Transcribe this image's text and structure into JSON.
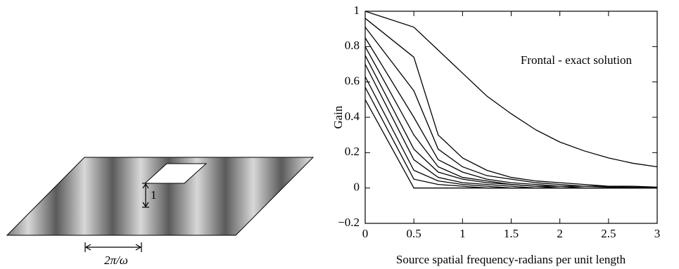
{
  "diagram": {
    "height_label": "1",
    "width_label": "2π/ω"
  },
  "chart_data": {
    "type": "line",
    "ylabel": "Gain",
    "xlabel": "Source spatial frequency-radians per unit length",
    "annotation": "Frontal - exact solution",
    "xlim": [
      0,
      3
    ],
    "ylim": [
      -0.2,
      1
    ],
    "xticks": [
      0,
      0.5,
      1,
      1.5,
      2,
      2.5,
      3
    ],
    "yticks": [
      {
        "value": -0.2,
        "label": "−0.2"
      },
      0,
      0.2,
      0.4,
      0.6,
      0.8,
      1
    ],
    "x": [
      0,
      0.5,
      0.75,
      1,
      1.25,
      1.5,
      1.75,
      2,
      2.25,
      2.5,
      2.75,
      3
    ],
    "series": [
      {
        "color": "#000000",
        "values": [
          1,
          0.91,
          0.78,
          0.65,
          0.52,
          0.42,
          0.33,
          0.26,
          0.21,
          0.17,
          0.14,
          0.12
        ]
      },
      {
        "color": "#000000",
        "values": [
          0.96,
          0.74,
          0.3,
          0.17,
          0.1,
          0.06,
          0.04,
          0.03,
          0.02,
          0.01,
          0.01,
          0.005
        ]
      },
      {
        "color": "#000000",
        "values": [
          0.91,
          0.55,
          0.22,
          0.12,
          0.07,
          0.05,
          0.03,
          0.02,
          0.01,
          0.01,
          0.005,
          0
        ]
      },
      {
        "color": "#000000",
        "values": [
          0.85,
          0.4,
          0.16,
          0.09,
          0.05,
          0.03,
          0.02,
          0.01,
          0.01,
          0.005,
          0,
          0
        ]
      },
      {
        "color": "#000000",
        "values": [
          0.8,
          0.3,
          0.12,
          0.06,
          0.04,
          0.02,
          0.01,
          0.01,
          0,
          0,
          0,
          0
        ]
      },
      {
        "color": "#000000",
        "values": [
          0.75,
          0.22,
          0.09,
          0.05,
          0.03,
          0.02,
          0.01,
          0,
          0,
          0,
          0,
          0
        ]
      },
      {
        "color": "#000000",
        "values": [
          0.7,
          0.16,
          0.06,
          0.03,
          0.02,
          0.01,
          0,
          0,
          0,
          0,
          0,
          0
        ]
      },
      {
        "color": "#000000",
        "values": [
          0.63,
          0.1,
          0.04,
          0.02,
          0.01,
          0,
          0,
          0,
          0,
          0,
          0,
          0
        ]
      },
      {
        "color": "#000000",
        "values": [
          0.57,
          0.05,
          0.02,
          0.01,
          0,
          0,
          0,
          0,
          0,
          0,
          0,
          0
        ]
      },
      {
        "color": "#000000",
        "values": [
          0.5,
          0,
          0,
          0,
          0,
          0,
          0,
          0,
          0,
          0,
          0,
          0
        ]
      }
    ]
  }
}
